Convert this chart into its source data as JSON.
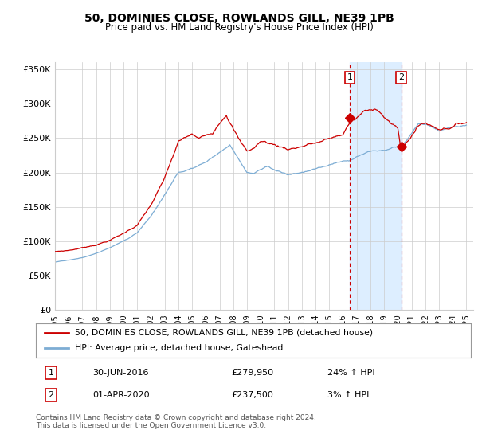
{
  "title": "50, DOMINIES CLOSE, ROWLANDS GILL, NE39 1PB",
  "subtitle": "Price paid vs. HM Land Registry's House Price Index (HPI)",
  "ylabel_ticks": [
    "£0",
    "£50K",
    "£100K",
    "£150K",
    "£200K",
    "£250K",
    "£300K",
    "£350K"
  ],
  "ytick_values": [
    0,
    50000,
    100000,
    150000,
    200000,
    250000,
    300000,
    350000
  ],
  "ylim": [
    0,
    360000
  ],
  "xlim_start": 1995.0,
  "xlim_end": 2025.5,
  "legend_line1": "50, DOMINIES CLOSE, ROWLANDS GILL, NE39 1PB (detached house)",
  "legend_line2": "HPI: Average price, detached house, Gateshead",
  "annotation1_label": "1",
  "annotation1_date": "30-JUN-2016",
  "annotation1_price": "£279,950",
  "annotation1_hpi": "24% ↑ HPI",
  "annotation2_label": "2",
  "annotation2_date": "01-APR-2020",
  "annotation2_price": "£237,500",
  "annotation2_hpi": "3% ↑ HPI",
  "footnote": "Contains HM Land Registry data © Crown copyright and database right 2024.\nThis data is licensed under the Open Government Licence v3.0.",
  "red_color": "#cc0000",
  "blue_color": "#7dadd4",
  "shaded_color": "#ddeeff",
  "marker1_x": 2016.5,
  "marker1_y": 279950,
  "marker2_x": 2020.25,
  "marker2_y": 237500,
  "background_color": "#ffffff",
  "grid_color": "#cccccc"
}
